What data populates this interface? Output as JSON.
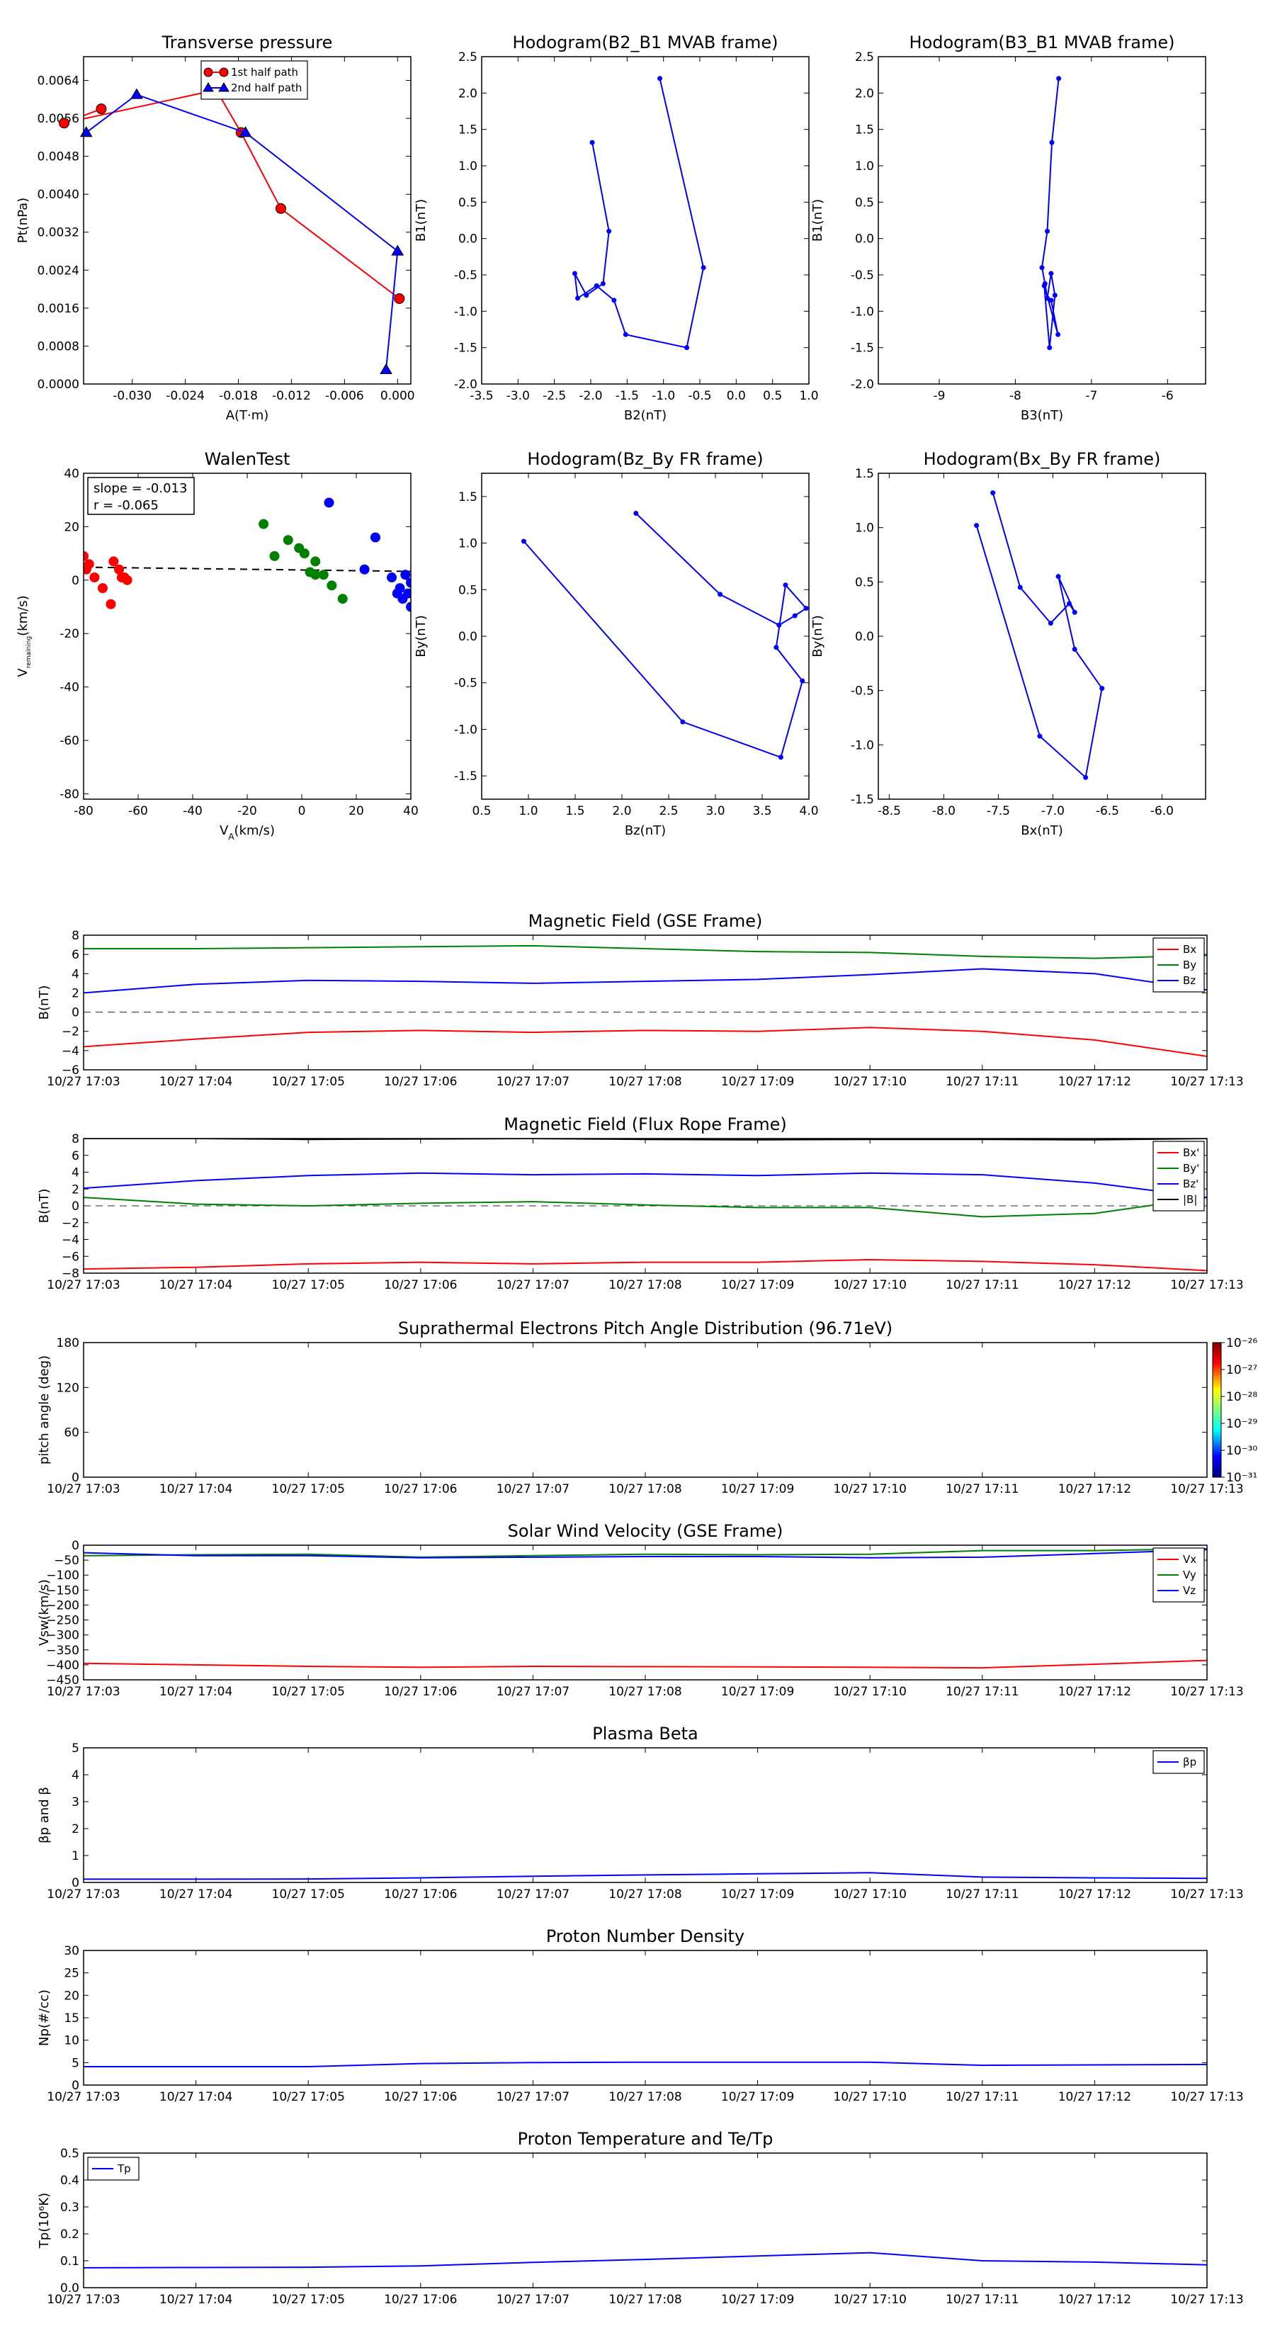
{
  "chart_data": [
    {
      "id": "tp",
      "type": "line",
      "title": "Transverse pressure",
      "xlabel": "A(T·m)",
      "ylabel": "Pt(nPa)",
      "xlim": [
        -0.0355,
        0.0015
      ],
      "ylim": [
        0,
        0.0069
      ],
      "xticks": [
        "-0.030",
        "-0.024",
        "-0.018",
        "-0.012",
        "-0.006",
        "0.000"
      ],
      "xtickvals": [
        -0.03,
        -0.024,
        -0.018,
        -0.012,
        -0.006,
        0.0
      ],
      "yticks": [
        "0.0000",
        "0.0008",
        "0.0016",
        "0.0024",
        "0.0032",
        "0.0040",
        "0.0048",
        "0.0056",
        "0.0064"
      ],
      "ytickvals": [
        0,
        0.0008,
        0.0016,
        0.0024,
        0.0032,
        0.004,
        0.0048,
        0.0056,
        0.0064
      ],
      "legend": {
        "position": "top-center"
      },
      "series": [
        {
          "name": "1st half path",
          "color": "#ff0000",
          "marker": "circle",
          "x": [
            0.0002,
            -0.0132,
            -0.0177,
            -0.0205,
            -0.0377,
            -0.0335
          ],
          "y": [
            0.0018,
            0.0037,
            0.0053,
            0.0062,
            0.0055,
            0.0058
          ]
        },
        {
          "name": "2nd half path",
          "color": "#0000ff",
          "marker": "triangle",
          "x": [
            -0.0013,
            0.0,
            -0.0172,
            -0.0295,
            -0.0352
          ],
          "y": [
            0.0003,
            0.0028,
            0.0053,
            0.0061,
            0.0053
          ]
        }
      ]
    },
    {
      "id": "hodo23",
      "type": "line",
      "title": "Hodogram(B2_B1 MVAB frame)",
      "xlabel": "B2(nT)",
      "ylabel": "B1(nT)",
      "xlim": [
        -3.5,
        1.0
      ],
      "ylim": [
        -2.0,
        2.5
      ],
      "xticks": [
        "-3.5",
        "-3.0",
        "-2.5",
        "-2.0",
        "-1.5",
        "-1.0",
        "-0.5",
        "0.0",
        "0.5",
        "1.0"
      ],
      "xtickvals": [
        -3.5,
        -3.0,
        -2.5,
        -2.0,
        -1.5,
        -1.0,
        -0.5,
        0.0,
        0.5,
        1.0
      ],
      "yticks": [
        "-2.0",
        "-1.5",
        "-1.0",
        "-0.5",
        "0.0",
        "0.5",
        "1.0",
        "1.5",
        "2.0",
        "2.5"
      ],
      "ytickvals": [
        -2.0,
        -1.5,
        -1.0,
        -0.5,
        0.0,
        0.5,
        1.0,
        1.5,
        2.0,
        2.5
      ],
      "series": [
        {
          "name": "",
          "color": "#0000ff",
          "marker": "dot",
          "x": [
            -1.05,
            -0.45,
            -0.68,
            -1.52,
            -1.68,
            -1.92,
            -2.18,
            -2.22,
            -2.06,
            -1.83,
            -1.75,
            -1.98
          ],
          "y": [
            2.2,
            -0.4,
            -1.5,
            -1.32,
            -0.85,
            -0.65,
            -0.82,
            -0.48,
            -0.78,
            -0.62,
            0.1,
            1.32
          ]
        }
      ]
    },
    {
      "id": "hodo13",
      "type": "line",
      "title": "Hodogram(B3_B1 MVAB frame)",
      "xlabel": "B3(nT)",
      "ylabel": "B1(nT)",
      "xlim": [
        -9.8,
        -5.5
      ],
      "ylim": [
        -2.0,
        2.5
      ],
      "xticks": [
        "-9",
        "-8",
        "-7",
        "-6"
      ],
      "xtickvals": [
        -9,
        -8,
        -7,
        -6
      ],
      "yticks": [
        "-2.0",
        "-1.5",
        "-1.0",
        "-0.5",
        "0.0",
        "0.5",
        "1.0",
        "1.5",
        "2.0",
        "2.5"
      ],
      "ytickvals": [
        -2.0,
        -1.5,
        -1.0,
        -0.5,
        0.0,
        0.5,
        1.0,
        1.5,
        2.0,
        2.5
      ],
      "series": [
        {
          "name": "",
          "color": "#0000ff",
          "marker": "dot",
          "x": [
            -7.43,
            -7.52,
            -7.58,
            -7.65,
            -7.61,
            -7.58,
            -7.53,
            -7.48,
            -7.55,
            -7.62,
            -7.44,
            -7.53
          ],
          "y": [
            2.2,
            1.32,
            0.1,
            -0.4,
            -0.62,
            -0.82,
            -0.48,
            -0.78,
            -1.5,
            -0.65,
            -1.32,
            -0.85
          ]
        }
      ]
    },
    {
      "id": "walen",
      "type": "scatter",
      "title": "WalenTest",
      "xlabel": "V_A(km/s)",
      "ylabel": "V_remaining(km/s)",
      "xlim": [
        -80,
        40
      ],
      "ylim": [
        -82,
        40
      ],
      "xticks": [
        "-80",
        "-60",
        "-40",
        "-20",
        "0",
        "20",
        "40"
      ],
      "xtickvals": [
        -80,
        -60,
        -40,
        -20,
        0,
        20,
        40
      ],
      "yticks": [
        "-80",
        "-60",
        "-40",
        "-20",
        "0",
        "20",
        "40"
      ],
      "ytickvals": [
        -80,
        -60,
        -40,
        -20,
        0,
        20,
        40
      ],
      "annotation": {
        "lines": [
          "slope = -0.013",
          "r = -0.065"
        ]
      },
      "fit": {
        "slope": -0.013,
        "intercept": 3.8
      },
      "series": [
        {
          "name": "",
          "color": "#ff0000",
          "x": [
            -79,
            -78,
            -76,
            -73,
            -70,
            -69,
            -67,
            -65,
            -64,
            -66,
            -80
          ],
          "y": [
            4,
            6,
            1,
            -3,
            -9,
            7,
            4,
            1,
            0,
            1,
            9
          ]
        },
        {
          "name": "",
          "color": "#008000",
          "x": [
            -14,
            -10,
            -5,
            -1,
            1,
            3,
            5,
            5,
            8,
            11,
            15
          ],
          "y": [
            21,
            9,
            15,
            12,
            10,
            3,
            7,
            2,
            2,
            -2,
            -7
          ]
        },
        {
          "name": "",
          "color": "#0000ff",
          "x": [
            10,
            23,
            27,
            33,
            35,
            36,
            37,
            38,
            39,
            40,
            40
          ],
          "y": [
            29,
            4,
            16,
            1,
            -5,
            -3,
            -7,
            2,
            -5,
            -10,
            -1
          ]
        }
      ]
    },
    {
      "id": "hodoFR_zy",
      "type": "line",
      "title": "Hodogram(Bz_By FR frame)",
      "xlabel": "Bz(nT)",
      "ylabel": "By(nT)",
      "xlim": [
        0.5,
        4.0
      ],
      "ylim": [
        -1.75,
        1.75
      ],
      "xticks": [
        "0.5",
        "1.0",
        "1.5",
        "2.0",
        "2.5",
        "3.0",
        "3.5",
        "4.0"
      ],
      "xtickvals": [
        0.5,
        1.0,
        1.5,
        2.0,
        2.5,
        3.0,
        3.5,
        4.0
      ],
      "yticks": [
        "-1.5",
        "-1.0",
        "-0.5",
        "0.0",
        "0.5",
        "1.0",
        "1.5"
      ],
      "ytickvals": [
        -1.5,
        -1.0,
        -0.5,
        0.0,
        0.5,
        1.0,
        1.5
      ],
      "series": [
        {
          "name": "",
          "color": "#0000ff",
          "marker": "dot",
          "x": [
            2.15,
            3.05,
            3.68,
            3.85,
            3.97,
            3.75,
            3.65,
            3.93,
            3.7,
            2.65,
            0.95
          ],
          "y": [
            1.32,
            0.45,
            0.12,
            0.22,
            0.3,
            0.55,
            -0.12,
            -0.48,
            -1.3,
            -0.92,
            1.02
          ]
        }
      ]
    },
    {
      "id": "hodoFR_xy",
      "type": "line",
      "title": "Hodogram(Bx_By FR frame)",
      "xlabel": "Bx(nT)",
      "ylabel": "By(nT)",
      "xlim": [
        -8.6,
        -5.6
      ],
      "ylim": [
        -1.5,
        1.5
      ],
      "xticks": [
        "-8.5",
        "-8.0",
        "-7.5",
        "-7.0",
        "-6.5",
        "-6.0"
      ],
      "xtickvals": [
        -8.5,
        -8.0,
        -7.5,
        -7.0,
        -6.5,
        -6.0
      ],
      "yticks": [
        "-1.5",
        "-1.0",
        "-0.5",
        "0.0",
        "0.5",
        "1.0",
        "1.5"
      ],
      "ytickvals": [
        -1.5,
        -1.0,
        -0.5,
        0.0,
        0.5,
        1.0,
        1.5
      ],
      "series": [
        {
          "name": "",
          "color": "#0000ff",
          "marker": "dot",
          "x": [
            -7.55,
            -7.3,
            -7.02,
            -6.85,
            -6.8,
            -6.95,
            -6.8,
            -6.55,
            -6.7,
            -7.12,
            -7.7
          ],
          "y": [
            1.32,
            0.45,
            0.12,
            0.3,
            0.22,
            0.55,
            -0.12,
            -0.48,
            -1.3,
            -0.92,
            1.02
          ]
        }
      ]
    },
    {
      "id": "mag_gse",
      "type": "line",
      "title": "Magnetic Field (GSE Frame)",
      "ylabel": "B(nT)",
      "xticks": [
        "10/27 17:03",
        "10/27 17:04",
        "10/27 17:05",
        "10/27 17:06",
        "10/27 17:07",
        "10/27 17:08",
        "10/27 17:09",
        "10/27 17:10",
        "10/27 17:11",
        "10/27 17:12",
        "10/27 17:13"
      ],
      "ylim": [
        -6,
        8
      ],
      "yticks": [
        "−6",
        "−4",
        "−2",
        "0",
        "2",
        "4",
        "6",
        "8"
      ],
      "ytickvals": [
        -6,
        -4,
        -2,
        0,
        2,
        4,
        6,
        8
      ],
      "hline": 0,
      "legend": {
        "position": "top-right"
      },
      "series": [
        {
          "name": "Bx",
          "color": "#ff0000",
          "values": [
            -3.6,
            -2.8,
            -2.1,
            -1.9,
            -2.1,
            -1.9,
            -2.0,
            -1.6,
            -2.0,
            -2.9,
            -4.6
          ]
        },
        {
          "name": "By",
          "color": "#008000",
          "values": [
            6.6,
            6.6,
            6.7,
            6.8,
            6.9,
            6.6,
            6.3,
            6.2,
            5.8,
            5.6,
            5.9
          ]
        },
        {
          "name": "Bz",
          "color": "#0000ff",
          "values": [
            2.0,
            2.9,
            3.3,
            3.2,
            3.0,
            3.2,
            3.4,
            3.9,
            4.5,
            4.0,
            2.3
          ]
        }
      ]
    },
    {
      "id": "mag_fr",
      "type": "line",
      "title": "Magnetic Field (Flux Rope Frame)",
      "ylabel": "B(nT)",
      "xticks": [
        "10/27 17:03",
        "10/27 17:04",
        "10/27 17:05",
        "10/27 17:06",
        "10/27 17:07",
        "10/27 17:08",
        "10/27 17:09",
        "10/27 17:10",
        "10/27 17:11",
        "10/27 17:12",
        "10/27 17:13"
      ],
      "ylim": [
        -8,
        8
      ],
      "yticks": [
        "−8",
        "−6",
        "−4",
        "−2",
        "0",
        "2",
        "4",
        "6",
        "8"
      ],
      "ytickvals": [
        -8,
        -6,
        -4,
        -2,
        0,
        2,
        4,
        6,
        8
      ],
      "hline": 0,
      "legend": {
        "position": "top-right"
      },
      "series": [
        {
          "name": "Bx'",
          "color": "#ff0000",
          "values": [
            -7.5,
            -7.3,
            -6.9,
            -6.7,
            -6.9,
            -6.7,
            -6.7,
            -6.4,
            -6.6,
            -7.0,
            -7.7
          ]
        },
        {
          "name": "By'",
          "color": "#008000",
          "values": [
            1.0,
            0.2,
            0.0,
            0.3,
            0.5,
            0.1,
            -0.2,
            -0.2,
            -1.3,
            -0.9,
            1.0
          ]
        },
        {
          "name": "Bz'",
          "color": "#0000ff",
          "values": [
            2.1,
            3.0,
            3.6,
            3.9,
            3.7,
            3.8,
            3.6,
            3.9,
            3.7,
            2.7,
            1.0
          ]
        },
        {
          "name": "|B|",
          "color": "#000000",
          "values": [
            8.0,
            8.0,
            7.9,
            7.95,
            8.0,
            7.9,
            7.85,
            7.9,
            7.9,
            7.85,
            8.0
          ]
        }
      ]
    },
    {
      "id": "pad",
      "type": "heatmap",
      "title": "Suprathermal Electrons Pitch Angle Distribution (96.71eV)",
      "ylabel": "pitch angle (deg)",
      "xticks": [
        "10/27 17:03",
        "10/27 17:04",
        "10/27 17:05",
        "10/27 17:06",
        "10/27 17:07",
        "10/27 17:08",
        "10/27 17:09",
        "10/27 17:10",
        "10/27 17:11",
        "10/27 17:12",
        "10/27 17:13"
      ],
      "ylim": [
        0,
        180
      ],
      "yticks": [
        "0",
        "60",
        "120",
        "180"
      ],
      "ytickvals": [
        0,
        60,
        120,
        180
      ],
      "colorbar": {
        "labels": [
          "10⁻²⁶",
          "10⁻²⁷",
          "10⁻²⁸",
          "10⁻²⁹",
          "10⁻³⁰",
          "10⁻³¹"
        ]
      }
    },
    {
      "id": "vsw",
      "type": "line",
      "title": "Solar Wind Velocity (GSE Frame)",
      "ylabel": "Vsw(km/s)",
      "xticks": [
        "10/27 17:03",
        "10/27 17:04",
        "10/27 17:05",
        "10/27 17:06",
        "10/27 17:07",
        "10/27 17:08",
        "10/27 17:09",
        "10/27 17:10",
        "10/27 17:11",
        "10/27 17:12",
        "10/27 17:13"
      ],
      "ylim": [
        -450,
        0
      ],
      "yticks": [
        "−450",
        "−400",
        "−350",
        "−300",
        "−250",
        "−200",
        "−150",
        "−100",
        "−50",
        "0"
      ],
      "ytickvals": [
        -450,
        -400,
        -350,
        -300,
        -250,
        -200,
        -150,
        -100,
        -50,
        0
      ],
      "legend": {
        "position": "top-right"
      },
      "series": [
        {
          "name": "Vx",
          "color": "#ff0000",
          "values": [
            -395,
            -400,
            -405,
            -408,
            -405,
            -406,
            -407,
            -408,
            -410,
            -398,
            -385
          ]
        },
        {
          "name": "Vy",
          "color": "#008000",
          "values": [
            -35,
            -32,
            -30,
            -40,
            -35,
            -30,
            -32,
            -30,
            -18,
            -18,
            -12
          ]
        },
        {
          "name": "Vz",
          "color": "#0000ff",
          "values": [
            -25,
            -35,
            -35,
            -42,
            -40,
            -38,
            -38,
            -42,
            -40,
            -28,
            -15
          ]
        }
      ]
    },
    {
      "id": "beta",
      "type": "line",
      "title": "Plasma Beta",
      "ylabel": "βp and β",
      "xticks": [
        "10/27 17:03",
        "10/27 17:04",
        "10/27 17:05",
        "10/27 17:06",
        "10/27 17:07",
        "10/27 17:08",
        "10/27 17:09",
        "10/27 17:10",
        "10/27 17:11",
        "10/27 17:12",
        "10/27 17:13"
      ],
      "ylim": [
        0,
        5
      ],
      "yticks": [
        "0",
        "1",
        "2",
        "3",
        "4",
        "5"
      ],
      "ytickvals": [
        0,
        1,
        2,
        3,
        4,
        5
      ],
      "legend": {
        "position": "top-right"
      },
      "series": [
        {
          "name": "βp",
          "color": "#0000ff",
          "values": [
            0.12,
            0.12,
            0.13,
            0.17,
            0.23,
            0.28,
            0.32,
            0.36,
            0.2,
            0.17,
            0.15
          ]
        }
      ]
    },
    {
      "id": "np",
      "type": "line",
      "title": "Proton Number Density",
      "ylabel": "Np(#/cc)",
      "xticks": [
        "10/27 17:03",
        "10/27 17:04",
        "10/27 17:05",
        "10/27 17:06",
        "10/27 17:07",
        "10/27 17:08",
        "10/27 17:09",
        "10/27 17:10",
        "10/27 17:11",
        "10/27 17:12",
        "10/27 17:13"
      ],
      "ylim": [
        0,
        30
      ],
      "yticks": [
        "0",
        "5",
        "10",
        "15",
        "20",
        "25",
        "30"
      ],
      "ytickvals": [
        0,
        5,
        10,
        15,
        20,
        25,
        30
      ],
      "series": [
        {
          "name": "",
          "color": "#0000ff",
          "values": [
            4.1,
            4.1,
            4.1,
            4.8,
            5.0,
            5.1,
            5.1,
            5.1,
            4.4,
            4.5,
            4.6
          ]
        }
      ]
    },
    {
      "id": "tp_temp",
      "type": "line",
      "title": "Proton Temperature and Te/Tp",
      "ylabel": "Tp(10⁶K)",
      "xticks": [
        "10/27 17:03",
        "10/27 17:04",
        "10/27 17:05",
        "10/27 17:06",
        "10/27 17:07",
        "10/27 17:08",
        "10/27 17:09",
        "10/27 17:10",
        "10/27 17:11",
        "10/27 17:12",
        "10/27 17:13"
      ],
      "ylim": [
        0,
        0.5
      ],
      "yticks": [
        "0.0",
        "0.1",
        "0.2",
        "0.3",
        "0.4",
        "0.5"
      ],
      "ytickvals": [
        0,
        0.1,
        0.2,
        0.3,
        0.4,
        0.5
      ],
      "legend": {
        "position": "top-left"
      },
      "series": [
        {
          "name": "Tp",
          "color": "#0000ff",
          "values": [
            0.074,
            0.075,
            0.076,
            0.081,
            0.094,
            0.105,
            0.118,
            0.13,
            0.1,
            0.095,
            0.085
          ]
        }
      ]
    }
  ]
}
